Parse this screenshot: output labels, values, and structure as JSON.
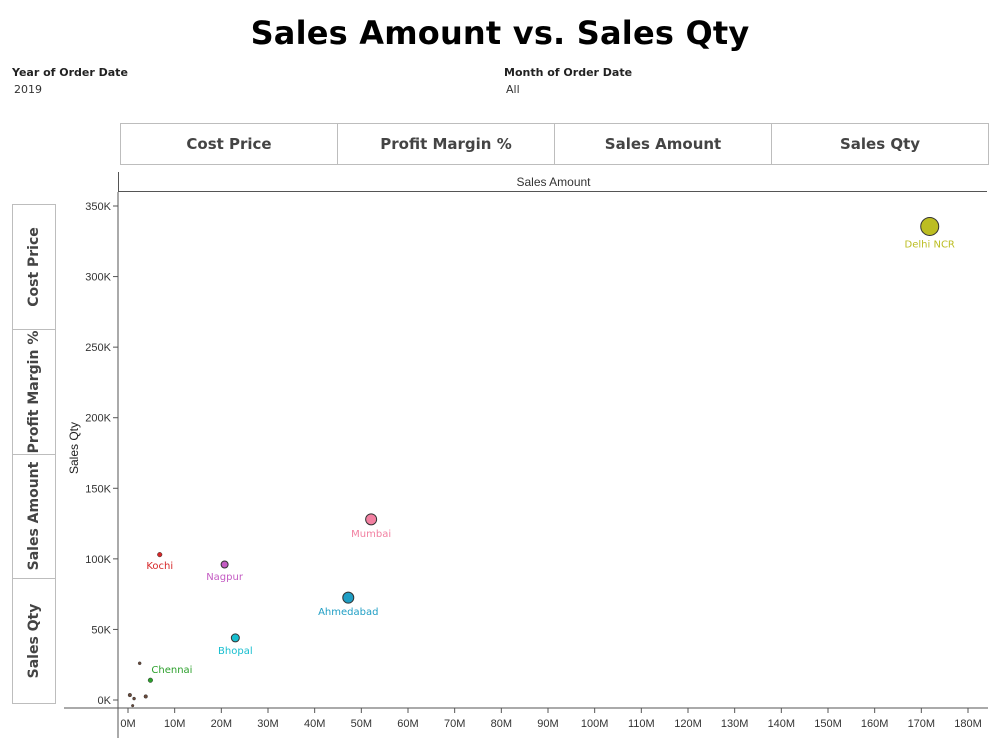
{
  "title": "Sales Amount vs. Sales Qty",
  "filters": [
    {
      "label": "Year of Order Date",
      "value": "2019"
    },
    {
      "label": "Month of Order Date",
      "value": "All"
    }
  ],
  "column_parameters": [
    "Cost Price",
    "Profit Margin %",
    "Sales Amount",
    "Sales Qty"
  ],
  "row_parameters": [
    "Cost Price",
    "Profit Margin %",
    "Sales Amount",
    "Sales Qty"
  ],
  "colors": {
    "Delhi NCR": "#bcbd22",
    "Mumbai": "#f280a1",
    "Ahmedabad": "#1f9ec4",
    "Nagpur": "#c45cc3",
    "Bhopal": "#17becf",
    "Kochi": "#d62728",
    "Chennai": "#2ca02c",
    "unlabeled": "#6b4a3a"
  },
  "chart_data": {
    "type": "scatter",
    "title": "",
    "xlabel": "Sales Amount",
    "ylabel": "Sales Qty",
    "xlim": [
      0,
      180000000
    ],
    "ylim": [
      0,
      350000
    ],
    "x_ticks": [
      "0M",
      "10M",
      "20M",
      "30M",
      "40M",
      "50M",
      "60M",
      "70M",
      "80M",
      "90M",
      "100M",
      "110M",
      "120M",
      "130M",
      "140M",
      "150M",
      "160M",
      "170M",
      "180M"
    ],
    "y_ticks": [
      "0K",
      "50K",
      "100K",
      "150K",
      "200K",
      "250K",
      "300K",
      "350K"
    ],
    "points": [
      {
        "label": "Delhi NCR",
        "x": 171800000,
        "y": 335500,
        "size": 9
      },
      {
        "label": "Mumbai",
        "x": 52100000,
        "y": 128000,
        "size": 5.5
      },
      {
        "label": "Ahmedabad",
        "x": 47200000,
        "y": 72500,
        "size": 5.5
      },
      {
        "label": "Nagpur",
        "x": 20700000,
        "y": 96000,
        "size": 3.5
      },
      {
        "label": "Bhopal",
        "x": 23000000,
        "y": 44000,
        "size": 4
      },
      {
        "label": "Kochi",
        "x": 6800000,
        "y": 103000,
        "size": 2.3
      },
      {
        "label": "Chennai",
        "x": 4800000,
        "y": 14000,
        "size": 2.3
      },
      {
        "label": "",
        "x": 2500000,
        "y": 26000,
        "size": 1.5
      },
      {
        "label": "",
        "x": 3800000,
        "y": 2500,
        "size": 1.8
      },
      {
        "label": "",
        "x": 400000,
        "y": 3500,
        "size": 1.8
      },
      {
        "label": "",
        "x": 1300000,
        "y": 1000,
        "size": 1.5
      },
      {
        "label": "",
        "x": 1000000,
        "y": -4000,
        "size": 1.3
      }
    ]
  }
}
